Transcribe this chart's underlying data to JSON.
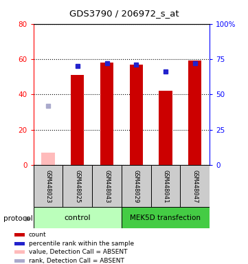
{
  "title": "GDS3790 / 206972_s_at",
  "samples": [
    "GSM448023",
    "GSM448025",
    "GSM448043",
    "GSM448029",
    "GSM448041",
    "GSM448047"
  ],
  "red_values": [
    null,
    51,
    58,
    57,
    42,
    59
  ],
  "blue_values": [
    null,
    70,
    72,
    71,
    66,
    72
  ],
  "pink_value": 7,
  "lavender_value": 42,
  "ylim_left": [
    0,
    80
  ],
  "ylim_right": [
    0,
    100
  ],
  "yticks_left": [
    0,
    20,
    40,
    60,
    80
  ],
  "yticks_right": [
    0,
    25,
    50,
    75,
    100
  ],
  "red_color": "#cc0000",
  "blue_color": "#2222cc",
  "pink_color": "#ffbbbb",
  "lavender_color": "#aaaacc",
  "control_color": "#bbffbb",
  "mek5d_color": "#44cc44",
  "gray_box_color": "#cccccc",
  "legend_items": [
    {
      "color": "#cc0000",
      "label": "count"
    },
    {
      "color": "#2222cc",
      "label": "percentile rank within the sample"
    },
    {
      "color": "#ffbbbb",
      "label": "value, Detection Call = ABSENT"
    },
    {
      "color": "#aaaacc",
      "label": "rank, Detection Call = ABSENT"
    }
  ]
}
